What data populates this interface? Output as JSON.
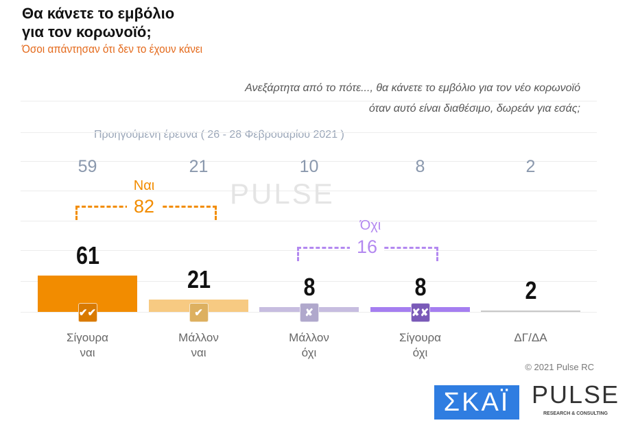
{
  "title": "Θα κάνετε το εμβόλιο\nγια τον κορωνοϊό;",
  "title_lines": [
    "Θα κάνετε το εμβόλιο",
    "για τον κορωνοϊό;"
  ],
  "subtitle": "Όσοι απάντησαν ότι δεν το έχουν κάνει",
  "question": [
    "Ανεξάρτητα από το πότε..., θα κάνετε το εμβόλιο για τον νέο κορωνοϊό",
    "όταν αυτό είναι διαθέσιμο, δωρεάν για εσάς;"
  ],
  "previous_label": "Προηγούμενη έρευνα  ( 26 - 28  Φεβρουαρίου  2021 )",
  "groups": {
    "yes": {
      "label": "Ναι",
      "value": "82",
      "color": "#f28c00"
    },
    "no": {
      "label": "Όχι",
      "value": "16",
      "color": "#b388f0"
    }
  },
  "copyright": "© 2021 Pulse RC",
  "logos": {
    "skai": "ΣΚΑΪ",
    "pulse": "PULSE",
    "pulse_sub": "RESEARCH & CONSULTING"
  },
  "chart_data": {
    "type": "bar",
    "categories": [
      "Σίγουρα ναι",
      "Μάλλον ναι",
      "Μάλλον όχι",
      "Σίγουρα όχι",
      "ΔΓ/ΔΑ"
    ],
    "category_lines": [
      [
        "Σίγουρα",
        "ναι"
      ],
      [
        "Μάλλον",
        "ναι"
      ],
      [
        "Μάλλον",
        "όχι"
      ],
      [
        "Σίγουρα",
        "όχι"
      ],
      [
        "ΔΓ/ΔΑ",
        ""
      ]
    ],
    "series": [
      {
        "name": "current",
        "values": [
          61,
          21,
          8,
          8,
          2
        ]
      },
      {
        "name": "Προηγούμενη έρευνα",
        "values": [
          59,
          21,
          10,
          8,
          2
        ]
      }
    ],
    "value_labels": [
      "61",
      "21",
      "8",
      "8",
      "2"
    ],
    "previous_labels": [
      "59",
      "21",
      "10",
      "8",
      "2"
    ],
    "badges": [
      "✔✔",
      "✔",
      "✘",
      "✘✘",
      ""
    ],
    "colors": [
      "#f28c00",
      "#f7ca82",
      "#c7bde0",
      "#a57ef0",
      "#c8c8c8"
    ],
    "badge_colors": [
      "#d97a00",
      "#ddb060",
      "#b0a8cc",
      "#7a5ab8",
      ""
    ],
    "ylim": [
      0,
      100
    ],
    "grid": true
  }
}
